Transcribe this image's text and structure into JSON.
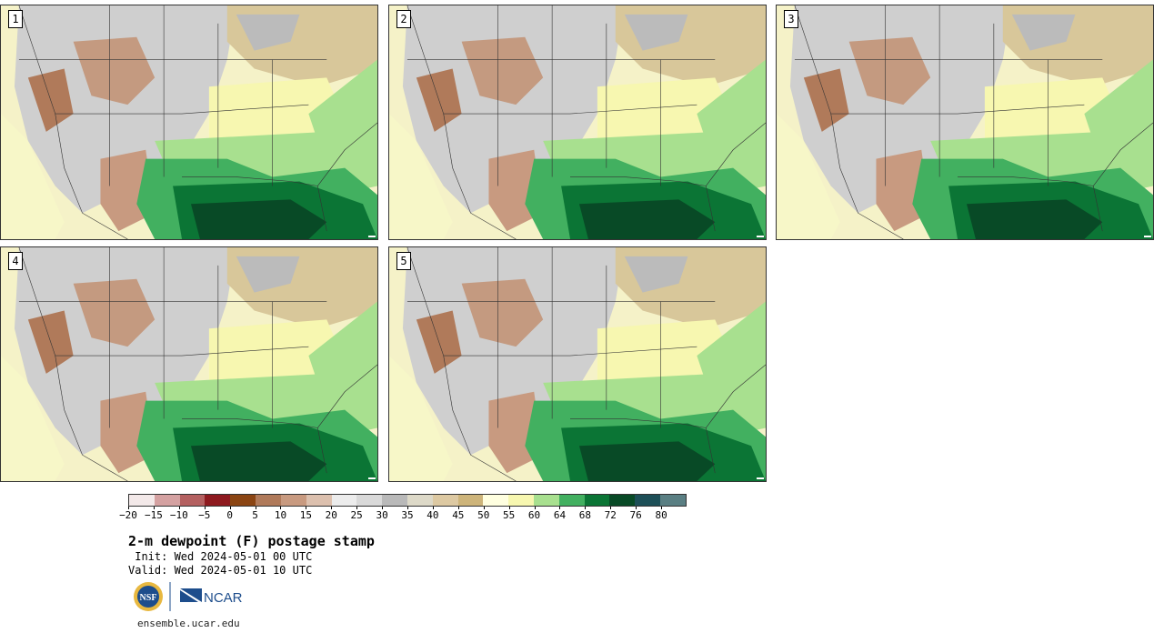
{
  "panels": [
    {
      "label": "1"
    },
    {
      "label": "2"
    },
    {
      "label": "3"
    },
    {
      "label": "4"
    },
    {
      "label": "5"
    }
  ],
  "colorbar": {
    "colors": [
      "#f3e9e9",
      "#d4a1a1",
      "#b46060",
      "#8e1a1f",
      "#8b4513",
      "#b07a5a",
      "#c89a80",
      "#dcc0ae",
      "#ececec",
      "#d9d9d9",
      "#b9b9b9",
      "#ddd9c8",
      "#ddc9a2",
      "#cdb47a",
      "#ffffe0",
      "#f7f7b0",
      "#a8e08f",
      "#42b060",
      "#0b7535",
      "#084a26",
      "#1d4f57",
      "#5a7f83"
    ],
    "tick_labels": [
      "−20",
      "−15",
      "−10",
      "−5",
      "0",
      "5",
      "10",
      "15",
      "20",
      "25",
      "30",
      "35",
      "40",
      "45",
      "50",
      "55",
      "60",
      "64",
      "68",
      "72",
      "76",
      "80"
    ]
  },
  "title": "2-m dewpoint (F) postage stamp",
  "init": " Init: Wed 2024-05-01 00 UTC",
  "valid": "Valid: Wed 2024-05-01 10 UTC",
  "logos": {
    "nsf": "NSF",
    "ncar": "NCAR"
  },
  "url": "ensemble.ucar.edu"
}
